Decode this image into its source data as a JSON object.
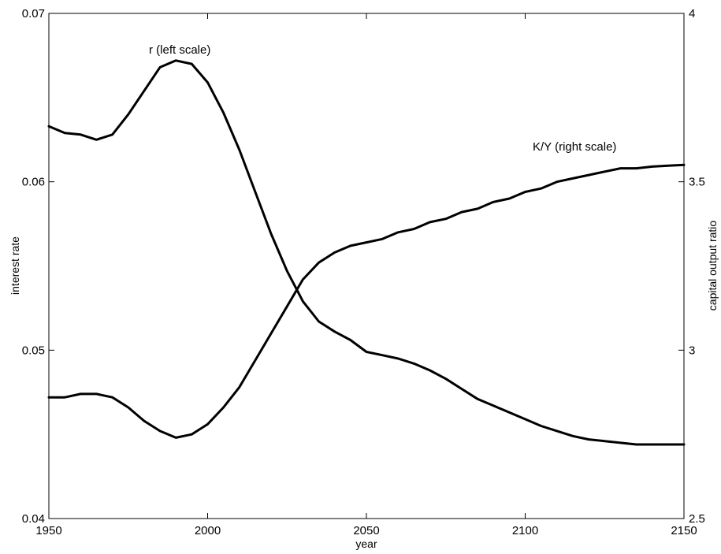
{
  "chart_data": {
    "type": "line",
    "title": "",
    "xlabel": "year",
    "ylabel_left": "interest rate",
    "ylabel_right": "capital output ratio",
    "xlim": [
      1950,
      2150
    ],
    "ylim_left": [
      0.04,
      0.07
    ],
    "ylim_right": [
      2.5,
      4
    ],
    "grid": false,
    "x_ticks": [
      "1950",
      "2000",
      "2050",
      "2100",
      "2150"
    ],
    "y_left_ticks": [
      "0.04",
      "0.05",
      "0.06",
      "0.07"
    ],
    "y_right_ticks": [
      "2.5",
      "3",
      "3.5",
      "4"
    ],
    "annotations": {
      "r": "r (left scale)",
      "ky": "K/Y (right scale)"
    },
    "series": [
      {
        "axis": "left",
        "x": [
          1950,
          1955,
          1960,
          1965,
          1970,
          1975,
          1980,
          1985,
          1990,
          1995,
          2000,
          2005,
          2010,
          2015,
          2020,
          2025,
          2030,
          2035,
          2040,
          2045,
          2050,
          2055,
          2060,
          2065,
          2070,
          2075,
          2080,
          2085,
          2090,
          2095,
          2100,
          2105,
          2110,
          2115,
          2120,
          2125,
          2130,
          2135,
          2140,
          2145,
          2150
        ],
        "y": [
          0.0633,
          0.0629,
          0.0628,
          0.0625,
          0.0628,
          0.064,
          0.0654,
          0.0668,
          0.0672,
          0.067,
          0.0659,
          0.0641,
          0.0619,
          0.0594,
          0.0569,
          0.0547,
          0.0529,
          0.0517,
          0.0511,
          0.0506,
          0.0499,
          0.0497,
          0.0495,
          0.0492,
          0.0488,
          0.0483,
          0.0477,
          0.0471,
          0.0467,
          0.0463,
          0.0459,
          0.0455,
          0.0452,
          0.0449,
          0.0447,
          0.0446,
          0.0445,
          0.0444,
          0.0444,
          0.0444,
          0.0444
        ]
      },
      {
        "axis": "right",
        "x": [
          1950,
          1955,
          1960,
          1965,
          1970,
          1975,
          1980,
          1985,
          1990,
          1995,
          2000,
          2005,
          2010,
          2015,
          2020,
          2025,
          2030,
          2035,
          2040,
          2045,
          2050,
          2055,
          2060,
          2065,
          2070,
          2075,
          2080,
          2085,
          2090,
          2095,
          2100,
          2105,
          2110,
          2115,
          2120,
          2125,
          2130,
          2135,
          2140,
          2145,
          2150
        ],
        "y": [
          2.86,
          2.86,
          2.87,
          2.87,
          2.86,
          2.83,
          2.79,
          2.76,
          2.74,
          2.75,
          2.78,
          2.83,
          2.89,
          2.97,
          3.05,
          3.13,
          3.21,
          3.26,
          3.29,
          3.31,
          3.32,
          3.33,
          3.35,
          3.36,
          3.38,
          3.39,
          3.41,
          3.42,
          3.44,
          3.45,
          3.47,
          3.48,
          3.5,
          3.51,
          3.52,
          3.53,
          3.54,
          3.54,
          3.545,
          3.548,
          3.55
        ]
      }
    ]
  }
}
